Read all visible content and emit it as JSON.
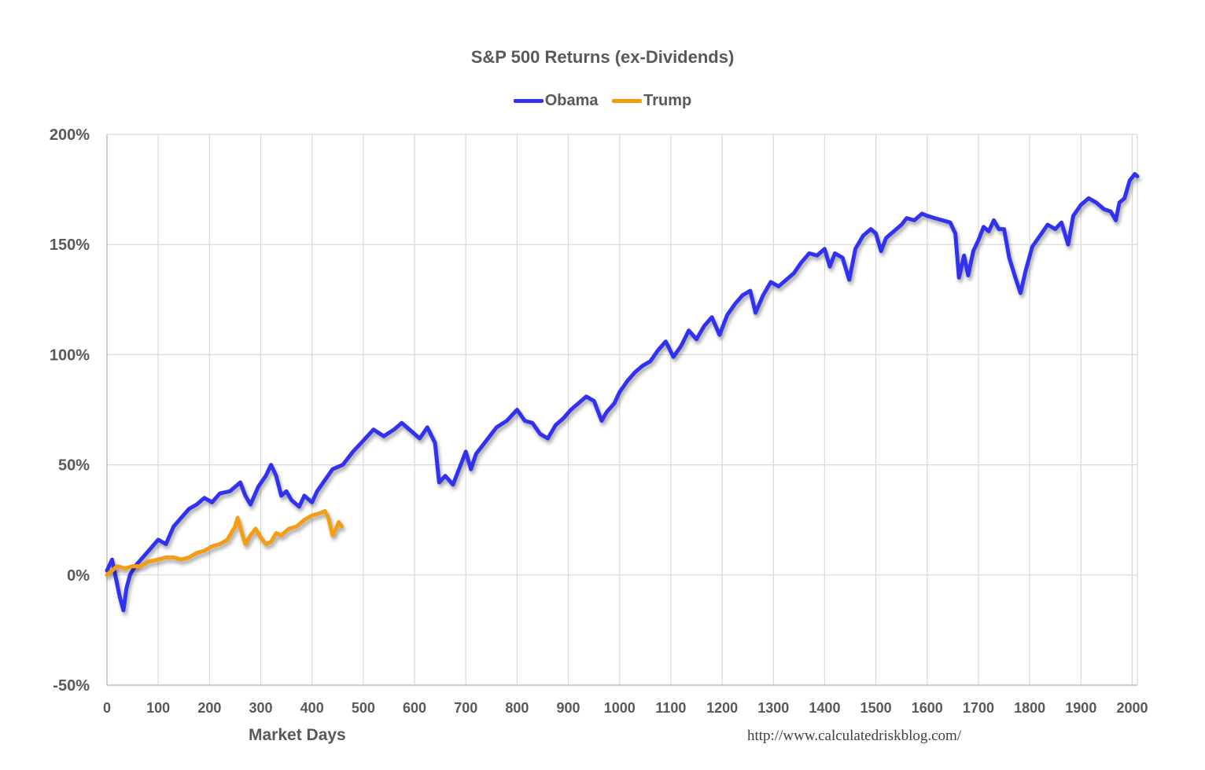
{
  "chart_data": {
    "type": "line",
    "title": "S&P 500 Returns (ex-Dividends)",
    "xlabel": "Market Days",
    "ylabel": "",
    "xlim": [
      0,
      2010
    ],
    "ylim": [
      -50,
      200
    ],
    "x_ticks": [
      0,
      100,
      200,
      300,
      400,
      500,
      600,
      700,
      800,
      900,
      1000,
      1100,
      1200,
      1300,
      1400,
      1500,
      1600,
      1700,
      1800,
      1900,
      2000
    ],
    "y_ticks": [
      -50,
      0,
      50,
      100,
      150,
      200
    ],
    "y_tick_labels": [
      "-50%",
      "0%",
      "50%",
      "100%",
      "150%",
      "200%"
    ],
    "grid": true,
    "legend_position": "top-center",
    "series": [
      {
        "name": "Obama",
        "color": "#3333ee",
        "points": [
          [
            0,
            2
          ],
          [
            10,
            7
          ],
          [
            18,
            -2
          ],
          [
            25,
            -10
          ],
          [
            32,
            -16
          ],
          [
            38,
            -6
          ],
          [
            45,
            0
          ],
          [
            55,
            4
          ],
          [
            70,
            8
          ],
          [
            85,
            12
          ],
          [
            100,
            16
          ],
          [
            115,
            14
          ],
          [
            130,
            22
          ],
          [
            145,
            26
          ],
          [
            160,
            30
          ],
          [
            175,
            32
          ],
          [
            190,
            35
          ],
          [
            205,
            33
          ],
          [
            220,
            37
          ],
          [
            240,
            38
          ],
          [
            260,
            42
          ],
          [
            270,
            36
          ],
          [
            280,
            32
          ],
          [
            295,
            40
          ],
          [
            310,
            45
          ],
          [
            320,
            50
          ],
          [
            330,
            45
          ],
          [
            340,
            36
          ],
          [
            350,
            38
          ],
          [
            360,
            34
          ],
          [
            375,
            31
          ],
          [
            385,
            36
          ],
          [
            400,
            33
          ],
          [
            410,
            38
          ],
          [
            425,
            43
          ],
          [
            440,
            48
          ],
          [
            460,
            50
          ],
          [
            480,
            56
          ],
          [
            500,
            61
          ],
          [
            520,
            66
          ],
          [
            540,
            63
          ],
          [
            560,
            66
          ],
          [
            575,
            69
          ],
          [
            590,
            66
          ],
          [
            610,
            62
          ],
          [
            625,
            67
          ],
          [
            640,
            60
          ],
          [
            648,
            42
          ],
          [
            660,
            45
          ],
          [
            675,
            41
          ],
          [
            690,
            50
          ],
          [
            700,
            56
          ],
          [
            710,
            48
          ],
          [
            720,
            55
          ],
          [
            740,
            61
          ],
          [
            760,
            67
          ],
          [
            780,
            70
          ],
          [
            800,
            75
          ],
          [
            815,
            70
          ],
          [
            830,
            69
          ],
          [
            845,
            64
          ],
          [
            860,
            62
          ],
          [
            875,
            68
          ],
          [
            890,
            71
          ],
          [
            905,
            75
          ],
          [
            920,
            78
          ],
          [
            935,
            81
          ],
          [
            950,
            79
          ],
          [
            965,
            70
          ],
          [
            975,
            74
          ],
          [
            990,
            78
          ],
          [
            1000,
            83
          ],
          [
            1015,
            88
          ],
          [
            1030,
            92
          ],
          [
            1045,
            95
          ],
          [
            1060,
            97
          ],
          [
            1075,
            102
          ],
          [
            1090,
            106
          ],
          [
            1105,
            99
          ],
          [
            1120,
            104
          ],
          [
            1135,
            111
          ],
          [
            1150,
            107
          ],
          [
            1165,
            113
          ],
          [
            1180,
            117
          ],
          [
            1195,
            109
          ],
          [
            1210,
            118
          ],
          [
            1225,
            123
          ],
          [
            1240,
            127
          ],
          [
            1255,
            129
          ],
          [
            1265,
            119
          ],
          [
            1280,
            127
          ],
          [
            1295,
            133
          ],
          [
            1310,
            131
          ],
          [
            1325,
            134
          ],
          [
            1340,
            137
          ],
          [
            1355,
            142
          ],
          [
            1370,
            146
          ],
          [
            1385,
            145
          ],
          [
            1400,
            148
          ],
          [
            1410,
            140
          ],
          [
            1420,
            146
          ],
          [
            1435,
            144
          ],
          [
            1448,
            134
          ],
          [
            1460,
            148
          ],
          [
            1475,
            154
          ],
          [
            1490,
            157
          ],
          [
            1500,
            155
          ],
          [
            1510,
            147
          ],
          [
            1520,
            153
          ],
          [
            1535,
            156
          ],
          [
            1550,
            159
          ],
          [
            1560,
            162
          ],
          [
            1575,
            161
          ],
          [
            1590,
            164
          ],
          [
            1600,
            163
          ],
          [
            1615,
            162
          ],
          [
            1630,
            161
          ],
          [
            1645,
            160
          ],
          [
            1655,
            155
          ],
          [
            1662,
            135
          ],
          [
            1672,
            145
          ],
          [
            1680,
            136
          ],
          [
            1690,
            147
          ],
          [
            1700,
            152
          ],
          [
            1710,
            158
          ],
          [
            1720,
            156
          ],
          [
            1730,
            161
          ],
          [
            1740,
            157
          ],
          [
            1750,
            157
          ],
          [
            1760,
            144
          ],
          [
            1772,
            135
          ],
          [
            1782,
            128
          ],
          [
            1792,
            138
          ],
          [
            1805,
            149
          ],
          [
            1820,
            154
          ],
          [
            1835,
            159
          ],
          [
            1850,
            157
          ],
          [
            1862,
            160
          ],
          [
            1875,
            150
          ],
          [
            1885,
            163
          ],
          [
            1900,
            168
          ],
          [
            1915,
            171
          ],
          [
            1930,
            169
          ],
          [
            1945,
            166
          ],
          [
            1958,
            165
          ],
          [
            1968,
            161
          ],
          [
            1975,
            169
          ],
          [
            1985,
            171
          ],
          [
            1995,
            179
          ],
          [
            2005,
            182
          ],
          [
            2010,
            181
          ]
        ]
      },
      {
        "name": "Trump",
        "color": "#f39c12",
        "points": [
          [
            0,
            0
          ],
          [
            10,
            2
          ],
          [
            20,
            4
          ],
          [
            35,
            3
          ],
          [
            50,
            4
          ],
          [
            65,
            4
          ],
          [
            80,
            6
          ],
          [
            100,
            7
          ],
          [
            115,
            8
          ],
          [
            130,
            8
          ],
          [
            145,
            7
          ],
          [
            160,
            8
          ],
          [
            175,
            10
          ],
          [
            190,
            11
          ],
          [
            205,
            13
          ],
          [
            220,
            14
          ],
          [
            235,
            16
          ],
          [
            250,
            22
          ],
          [
            255,
            26
          ],
          [
            262,
            20
          ],
          [
            270,
            14
          ],
          [
            280,
            18
          ],
          [
            290,
            21
          ],
          [
            300,
            17
          ],
          [
            310,
            14
          ],
          [
            320,
            15
          ],
          [
            330,
            19
          ],
          [
            340,
            18
          ],
          [
            355,
            21
          ],
          [
            370,
            22
          ],
          [
            385,
            25
          ],
          [
            400,
            27
          ],
          [
            415,
            28
          ],
          [
            425,
            29
          ],
          [
            432,
            26
          ],
          [
            440,
            18
          ],
          [
            447,
            21
          ],
          [
            452,
            24
          ],
          [
            458,
            22
          ]
        ]
      }
    ],
    "source": "http://www.calculatedriskblog.com/"
  }
}
